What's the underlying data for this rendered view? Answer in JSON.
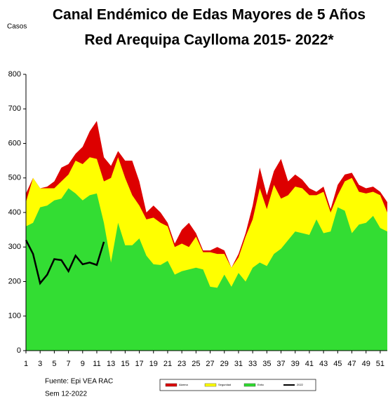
{
  "chart_data": {
    "type": "area",
    "title": "Canal Endémico de Edas Mayores de 5 Años",
    "subtitle": "Red Arequipa Caylloma 2015- 2022*",
    "y_label": "Casos",
    "source": "Fuente: Epi VEA RAC",
    "note": "Sem  12-2022",
    "x": [
      1,
      2,
      3,
      4,
      5,
      6,
      7,
      8,
      9,
      10,
      11,
      12,
      13,
      14,
      15,
      16,
      17,
      18,
      19,
      20,
      21,
      22,
      23,
      24,
      25,
      26,
      27,
      28,
      29,
      30,
      31,
      32,
      33,
      34,
      35,
      36,
      37,
      38,
      39,
      40,
      41,
      42,
      43,
      44,
      45,
      46,
      47,
      48,
      49,
      50,
      51,
      52
    ],
    "xlim": [
      1,
      52
    ],
    "xticks": [
      1,
      3,
      5,
      7,
      9,
      11,
      13,
      15,
      17,
      19,
      21,
      23,
      25,
      27,
      29,
      31,
      33,
      35,
      37,
      39,
      41,
      43,
      45,
      47,
      49,
      51
    ],
    "ylim": [
      0,
      800
    ],
    "yticks": [
      0,
      100,
      200,
      300,
      400,
      500,
      600,
      700,
      800
    ],
    "series": [
      {
        "name": "Alarma",
        "color": "#dd0000",
        "style": "area",
        "values": [
          455,
          500,
          470,
          475,
          490,
          530,
          540,
          570,
          590,
          635,
          665,
          560,
          535,
          578,
          550,
          550,
          490,
          400,
          420,
          400,
          370,
          310,
          350,
          370,
          340,
          290,
          290,
          300,
          290,
          240,
          280,
          340,
          420,
          530,
          450,
          520,
          555,
          490,
          510,
          495,
          470,
          460,
          475,
          410,
          480,
          510,
          515,
          480,
          470,
          475,
          460,
          430
        ]
      },
      {
        "name": "Seguridad",
        "color": "#ffff00",
        "style": "area",
        "values": [
          430,
          500,
          470,
          470,
          470,
          490,
          510,
          550,
          540,
          560,
          555,
          490,
          500,
          560,
          500,
          450,
          420,
          380,
          385,
          370,
          360,
          300,
          310,
          300,
          330,
          285,
          285,
          280,
          280,
          240,
          270,
          330,
          380,
          470,
          410,
          480,
          440,
          450,
          475,
          470,
          450,
          450,
          460,
          400,
          450,
          490,
          500,
          460,
          455,
          460,
          450,
          400
        ]
      },
      {
        "name": "Exito",
        "color": "#33dd33",
        "style": "area",
        "values": [
          360,
          370,
          415,
          420,
          435,
          440,
          470,
          455,
          435,
          450,
          455,
          370,
          255,
          370,
          305,
          305,
          325,
          275,
          250,
          248,
          260,
          220,
          230,
          235,
          240,
          235,
          185,
          182,
          220,
          185,
          225,
          200,
          240,
          255,
          245,
          280,
          295,
          320,
          345,
          340,
          335,
          380,
          340,
          345,
          415,
          405,
          340,
          365,
          370,
          390,
          355,
          345
        ]
      },
      {
        "name": "2022",
        "color": "#000000",
        "style": "line",
        "values": [
          320,
          280,
          195,
          220,
          265,
          262,
          230,
          275,
          250,
          255,
          248,
          315,
          null,
          null,
          null,
          null,
          null,
          null,
          null,
          null,
          null,
          null,
          null,
          null,
          null,
          null,
          null,
          null,
          null,
          null,
          null,
          null,
          null,
          null,
          null,
          null,
          null,
          null,
          null,
          null,
          null,
          null,
          null,
          null,
          null,
          null,
          null,
          null,
          null,
          null,
          null,
          null
        ]
      }
    ]
  }
}
